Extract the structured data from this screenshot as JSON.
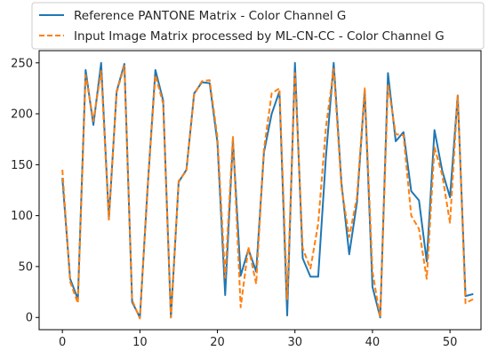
{
  "chart_data": {
    "type": "line",
    "title": "",
    "xlabel": "",
    "ylabel": "",
    "xlim": [
      -3,
      54
    ],
    "ylim": [
      -12,
      262
    ],
    "x_ticks": [
      0,
      10,
      20,
      30,
      40,
      50
    ],
    "y_ticks": [
      0,
      50,
      100,
      150,
      200,
      250
    ],
    "grid": false,
    "legend_position": "top-center",
    "series": [
      {
        "name": "Reference PANTONE Matrix - Color Channel G",
        "color": "#1f77b4",
        "style": "solid",
        "x": [
          0,
          1,
          2,
          3,
          4,
          5,
          6,
          7,
          8,
          9,
          10,
          11,
          12,
          13,
          14,
          15,
          16,
          17,
          18,
          19,
          20,
          21,
          22,
          23,
          24,
          25,
          26,
          27,
          28,
          29,
          30,
          31,
          32,
          33,
          34,
          35,
          36,
          37,
          38,
          39,
          40,
          41,
          42,
          43,
          44,
          45,
          46,
          47,
          48,
          49,
          50,
          51,
          52,
          53
        ],
        "values": [
          137,
          38,
          18,
          243,
          189,
          250,
          97,
          222,
          249,
          15,
          0,
          128,
          243,
          213,
          0,
          133,
          145,
          220,
          231,
          230,
          172,
          22,
          174,
          41,
          67,
          45,
          162,
          200,
          222,
          2,
          250,
          58,
          40,
          40,
          158,
          250,
          132,
          62,
          113,
          223,
          30,
          0,
          240,
          173,
          182,
          124,
          115,
          55,
          184,
          144,
          118,
          218,
          21,
          23
        ]
      },
      {
        "name": "Input Image Matrix processed by ML-CN-CC - Color Channel G",
        "color": "#ff7f0e",
        "style": "dashed",
        "x": [
          0,
          1,
          2,
          3,
          4,
          5,
          6,
          7,
          8,
          9,
          10,
          11,
          12,
          13,
          14,
          15,
          16,
          17,
          18,
          19,
          20,
          21,
          22,
          23,
          24,
          25,
          26,
          27,
          28,
          29,
          30,
          31,
          32,
          33,
          34,
          35,
          36,
          37,
          38,
          39,
          40,
          41,
          42,
          43,
          44,
          45,
          46,
          47,
          48,
          49,
          50,
          51,
          52,
          53
        ],
        "values": [
          145,
          35,
          14,
          238,
          193,
          242,
          96,
          221,
          247,
          17,
          -1,
          128,
          238,
          210,
          0,
          134,
          144,
          219,
          232,
          233,
          177,
          39,
          178,
          10,
          69,
          33,
          165,
          220,
          225,
          18,
          240,
          68,
          48,
          92,
          187,
          244,
          128,
          79,
          118,
          225,
          45,
          0,
          229,
          180,
          179,
          100,
          87,
          38,
          167,
          140,
          93,
          218,
          14,
          18
        ]
      }
    ]
  }
}
